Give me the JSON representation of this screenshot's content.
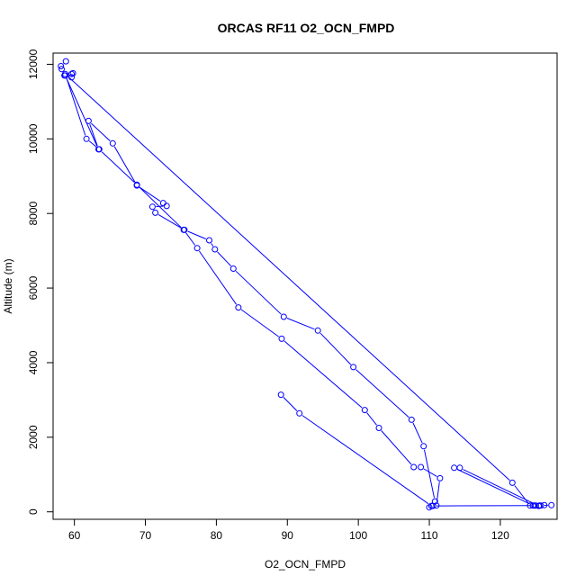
{
  "chart_data": {
    "type": "line",
    "title": "ORCAS RF11 O2_OCN_FMPD",
    "xlabel": "O2_OCN_FMPD",
    "ylabel": "Altitude (m)",
    "xlim": [
      57,
      128
    ],
    "ylim": [
      -200,
      12300
    ],
    "xticks": [
      60,
      70,
      80,
      90,
      100,
      110,
      120
    ],
    "yticks": [
      0,
      2000,
      4000,
      6000,
      8000,
      10000,
      12000
    ],
    "grid": false,
    "legend": "none",
    "color": "#0000ff",
    "marker": "open-circle",
    "series": [
      {
        "x": [
          58.8,
          58.1,
          58.2,
          58.6,
          59.6,
          59.8,
          59.6,
          58.7,
          63.4,
          62.0,
          65.4,
          68.8,
          72.5,
          73.0,
          71.0,
          71.4,
          75.5,
          79.0,
          79.8,
          82.4,
          89.5,
          94.3,
          99.3,
          107.5,
          109.2,
          110.8,
          111.0,
          111.5,
          108.8,
          107.8,
          102.9,
          100.9,
          89.2,
          83.1,
          77.3,
          75.4,
          68.8,
          63.5,
          61.7,
          58.7,
          121.7,
          124.2,
          125.0,
          125.5,
          126.2,
          127.2,
          125.7,
          124.6,
          113.5,
          114.3,
          125.4,
          124.8,
          110.5,
          110.0,
          110.3,
          91.7,
          89.1
        ],
        "y": [
          12080,
          11950,
          11870,
          11700,
          11650,
          11760,
          11740,
          11700,
          9720,
          10480,
          9880,
          8750,
          8280,
          8200,
          8180,
          8020,
          7560,
          7280,
          7040,
          6520,
          5230,
          4860,
          3880,
          2470,
          1760,
          280,
          170,
          900,
          1200,
          1200,
          2250,
          2730,
          4640,
          5480,
          7070,
          7560,
          8770,
          9720,
          10000,
          11740,
          780,
          170,
          170,
          170,
          180,
          180,
          170,
          170,
          1180,
          1180,
          160,
          170,
          160,
          120,
          160,
          2640,
          3140
        ]
      }
    ]
  }
}
